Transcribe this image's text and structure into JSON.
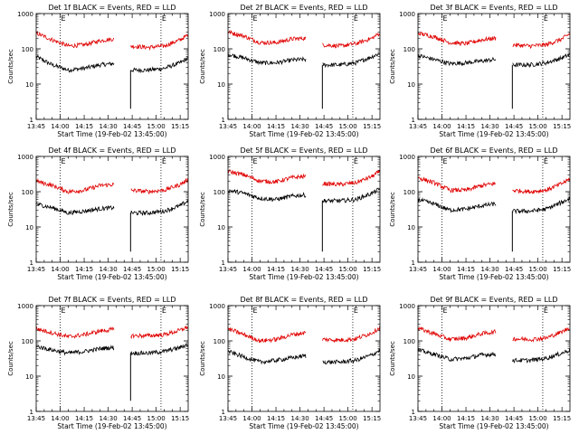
{
  "figure": {
    "colors": {
      "events": "#000000",
      "lld": "#e00000",
      "axes": "#000000"
    },
    "event_marker": "E",
    "xlabel": "Start Time (19-Feb-02 13:45:00)",
    "ylabel": "Counts/sec",
    "x_ticks": [
      "13:45",
      "14:00",
      "14:15",
      "14:30",
      "14:45",
      "15:00",
      "15:15"
    ],
    "y_ticks": [
      "1",
      "10",
      "100",
      "1000"
    ]
  },
  "chart_data": [
    {
      "type": "line",
      "title": "Det 1f BLACK = Events, RED = LLD",
      "xlabel": "Start Time (19-Feb-02 13:45:00)",
      "ylabel": "Counts/sec",
      "y_scale": "log",
      "ylim": [
        1,
        1000
      ],
      "xlim_minutes": [
        0,
        95
      ],
      "x_ticks": [
        "13:45",
        "14:00",
        "14:15",
        "14:30",
        "14:45",
        "15:00",
        "15:15"
      ],
      "event_markers_minutes": [
        15,
        78
      ],
      "data_gap_minutes": [
        49,
        59
      ],
      "dropout_minute": 59,
      "series": [
        {
          "name": "Events",
          "color": "#000000",
          "x_minutes": [
            0,
            10,
            20,
            30,
            40,
            48,
            59,
            70,
            80,
            90,
            95
          ],
          "y": [
            60,
            35,
            25,
            28,
            35,
            38,
            25,
            25,
            28,
            40,
            55
          ]
        },
        {
          "name": "LLD",
          "color": "#e00000",
          "x_minutes": [
            0,
            10,
            20,
            30,
            40,
            48,
            59,
            70,
            80,
            90,
            95
          ],
          "y": [
            280,
            180,
            120,
            130,
            170,
            190,
            120,
            110,
            120,
            180,
            250
          ]
        }
      ]
    },
    {
      "type": "line",
      "title": "Det 2f BLACK = Events, RED = LLD",
      "xlabel": "Start Time (19-Feb-02 13:45:00)",
      "ylabel": "Counts/sec",
      "y_scale": "log",
      "ylim": [
        1,
        1000
      ],
      "xlim_minutes": [
        0,
        95
      ],
      "x_ticks": [
        "13:45",
        "14:00",
        "14:15",
        "14:30",
        "14:45",
        "15:00",
        "15:15"
      ],
      "event_markers_minutes": [
        15,
        78
      ],
      "data_gap_minutes": [
        49,
        59
      ],
      "dropout_minute": 59,
      "series": [
        {
          "name": "Events",
          "color": "#000000",
          "x_minutes": [
            0,
            10,
            20,
            30,
            40,
            48,
            59,
            70,
            80,
            90,
            95
          ],
          "y": [
            70,
            55,
            40,
            40,
            48,
            50,
            35,
            35,
            40,
            60,
            75
          ]
        },
        {
          "name": "LLD",
          "color": "#e00000",
          "x_minutes": [
            0,
            10,
            20,
            30,
            40,
            48,
            59,
            70,
            80,
            90,
            95
          ],
          "y": [
            300,
            230,
            150,
            150,
            190,
            200,
            130,
            120,
            140,
            200,
            280
          ]
        }
      ]
    },
    {
      "type": "line",
      "title": "Det 3f BLACK = Events, RED = LLD",
      "xlabel": "Start Time (19-Feb-02 13:45:00)",
      "ylabel": "Counts/sec",
      "y_scale": "log",
      "ylim": [
        1,
        1000
      ],
      "xlim_minutes": [
        0,
        95
      ],
      "x_ticks": [
        "13:45",
        "14:00",
        "14:15",
        "14:30",
        "14:45",
        "15:00",
        "15:15"
      ],
      "event_markers_minutes": [
        15,
        78
      ],
      "data_gap_minutes": [
        49,
        59
      ],
      "dropout_minute": 59,
      "series": [
        {
          "name": "Events",
          "color": "#000000",
          "x_minutes": [
            0,
            10,
            20,
            30,
            40,
            48,
            59,
            70,
            80,
            90,
            95
          ],
          "y": [
            65,
            50,
            38,
            40,
            45,
            50,
            35,
            35,
            40,
            55,
            70
          ]
        },
        {
          "name": "LLD",
          "color": "#e00000",
          "x_minutes": [
            0,
            10,
            20,
            30,
            40,
            48,
            59,
            70,
            80,
            90,
            95
          ],
          "y": [
            280,
            220,
            150,
            140,
            180,
            200,
            130,
            120,
            130,
            190,
            270
          ]
        }
      ]
    },
    {
      "type": "line",
      "title": "Det 4f BLACK = Events, RED = LLD",
      "xlabel": "Start Time (19-Feb-02 13:45:00)",
      "ylabel": "Counts/sec",
      "y_scale": "log",
      "ylim": [
        1,
        1000
      ],
      "xlim_minutes": [
        0,
        95
      ],
      "x_ticks": [
        "13:45",
        "14:00",
        "14:15",
        "14:30",
        "14:45",
        "15:00",
        "15:15"
      ],
      "event_markers_minutes": [
        15,
        78
      ],
      "data_gap_minutes": [
        49,
        59
      ],
      "dropout_minute": 59,
      "series": [
        {
          "name": "Events",
          "color": "#000000",
          "x_minutes": [
            0,
            10,
            20,
            30,
            40,
            48,
            59,
            70,
            80,
            90,
            95
          ],
          "y": [
            45,
            35,
            25,
            28,
            33,
            35,
            25,
            25,
            28,
            40,
            55
          ]
        },
        {
          "name": "LLD",
          "color": "#e00000",
          "x_minutes": [
            0,
            10,
            20,
            30,
            40,
            48,
            59,
            70,
            80,
            90,
            95
          ],
          "y": [
            200,
            150,
            100,
            110,
            150,
            160,
            110,
            100,
            110,
            160,
            220
          ]
        }
      ]
    },
    {
      "type": "line",
      "title": "Det 5f BLACK = Events, RED = LLD",
      "xlabel": "Start Time (19-Feb-02 13:45:00)",
      "ylabel": "Counts/sec",
      "y_scale": "log",
      "ylim": [
        1,
        1000
      ],
      "xlim_minutes": [
        0,
        95
      ],
      "x_ticks": [
        "13:45",
        "14:00",
        "14:15",
        "14:30",
        "14:45",
        "15:00",
        "15:15"
      ],
      "event_markers_minutes": [
        15,
        78
      ],
      "data_gap_minutes": [
        49,
        59
      ],
      "dropout_minute": 59,
      "series": [
        {
          "name": "Events",
          "color": "#000000",
          "x_minutes": [
            0,
            10,
            20,
            30,
            40,
            48,
            59,
            70,
            80,
            90,
            95
          ],
          "y": [
            110,
            90,
            65,
            60,
            75,
            80,
            55,
            55,
            60,
            90,
            120
          ]
        },
        {
          "name": "LLD",
          "color": "#e00000",
          "x_minutes": [
            0,
            10,
            20,
            30,
            40,
            48,
            59,
            70,
            80,
            90,
            95
          ],
          "y": [
            380,
            300,
            200,
            190,
            250,
            270,
            170,
            160,
            180,
            270,
            380
          ]
        }
      ]
    },
    {
      "type": "line",
      "title": "Det 6f BLACK = Events, RED = LLD",
      "xlabel": "Start Time (19-Feb-02 13:45:00)",
      "ylabel": "Counts/sec",
      "y_scale": "log",
      "ylim": [
        1,
        1000
      ],
      "xlim_minutes": [
        0,
        95
      ],
      "x_ticks": [
        "13:45",
        "14:00",
        "14:15",
        "14:30",
        "14:45",
        "15:00",
        "15:15"
      ],
      "event_markers_minutes": [
        15,
        78
      ],
      "data_gap_minutes": [
        49,
        59
      ],
      "dropout_minute": 59,
      "series": [
        {
          "name": "Events",
          "color": "#000000",
          "x_minutes": [
            0,
            10,
            20,
            30,
            40,
            48,
            59,
            70,
            80,
            90,
            95
          ],
          "y": [
            60,
            45,
            30,
            32,
            40,
            45,
            28,
            28,
            32,
            50,
            65
          ]
        },
        {
          "name": "LLD",
          "color": "#e00000",
          "x_minutes": [
            0,
            10,
            20,
            30,
            40,
            48,
            59,
            70,
            80,
            90,
            95
          ],
          "y": [
            250,
            180,
            110,
            110,
            150,
            170,
            110,
            100,
            110,
            170,
            230
          ]
        }
      ]
    },
    {
      "type": "line",
      "title": "Det 7f BLACK = Events, RED = LLD",
      "xlabel": "Start Time (19-Feb-02 13:45:00)",
      "ylabel": "Counts/sec",
      "y_scale": "log",
      "ylim": [
        1,
        1000
      ],
      "xlim_minutes": [
        0,
        95
      ],
      "x_ticks": [
        "13:45",
        "14:00",
        "14:15",
        "14:30",
        "14:45",
        "15:00",
        "15:15"
      ],
      "event_markers_minutes": [
        15,
        78
      ],
      "data_gap_minutes": [
        49,
        59
      ],
      "dropout_minute": 59,
      "series": [
        {
          "name": "Events",
          "color": "#000000",
          "x_minutes": [
            0,
            10,
            20,
            30,
            40,
            48,
            59,
            70,
            80,
            90,
            95
          ],
          "y": [
            70,
            55,
            45,
            50,
            60,
            65,
            45,
            45,
            50,
            65,
            80
          ]
        },
        {
          "name": "LLD",
          "color": "#e00000",
          "x_minutes": [
            0,
            10,
            20,
            30,
            40,
            48,
            59,
            70,
            80,
            90,
            95
          ],
          "y": [
            220,
            170,
            130,
            150,
            190,
            210,
            140,
            140,
            150,
            200,
            250
          ]
        }
      ]
    },
    {
      "type": "line",
      "title": "Det 8f BLACK = Events, RED = LLD",
      "xlabel": "Start Time (19-Feb-02 13:45:00)",
      "ylabel": "Counts/sec",
      "y_scale": "log",
      "ylim": [
        1,
        1000
      ],
      "xlim_minutes": [
        0,
        95
      ],
      "x_ticks": [
        "13:45",
        "14:00",
        "14:15",
        "14:30",
        "14:45",
        "15:00",
        "15:15"
      ],
      "event_markers_minutes": [
        15,
        78
      ],
      "data_gap_minutes": [
        49,
        59
      ],
      "dropout_minute": null,
      "series": [
        {
          "name": "Events",
          "color": "#000000",
          "x_minutes": [
            0,
            10,
            20,
            30,
            40,
            48,
            59,
            70,
            80,
            90,
            95
          ],
          "y": [
            50,
            35,
            25,
            28,
            33,
            38,
            25,
            25,
            28,
            40,
            55
          ]
        },
        {
          "name": "LLD",
          "color": "#e00000",
          "x_minutes": [
            0,
            10,
            20,
            30,
            40,
            48,
            59,
            70,
            80,
            90,
            95
          ],
          "y": [
            220,
            150,
            100,
            110,
            150,
            170,
            110,
            105,
            115,
            170,
            240
          ]
        }
      ]
    },
    {
      "type": "line",
      "title": "Det 9f BLACK = Events, RED = LLD",
      "xlabel": "Start Time (19-Feb-02 13:45:00)",
      "ylabel": "Counts/sec",
      "y_scale": "log",
      "ylim": [
        1,
        1000
      ],
      "xlim_minutes": [
        0,
        95
      ],
      "x_ticks": [
        "13:45",
        "14:00",
        "14:15",
        "14:30",
        "14:45",
        "15:00",
        "15:15"
      ],
      "event_markers_minutes": [
        15,
        78
      ],
      "data_gap_minutes": [
        49,
        59
      ],
      "dropout_minute": null,
      "series": [
        {
          "name": "Events",
          "color": "#000000",
          "x_minutes": [
            0,
            10,
            20,
            30,
            40,
            48,
            59,
            70,
            80,
            90,
            95
          ],
          "y": [
            55,
            42,
            30,
            32,
            40,
            42,
            28,
            28,
            32,
            45,
            55
          ]
        },
        {
          "name": "LLD",
          "color": "#e00000",
          "x_minutes": [
            0,
            10,
            20,
            30,
            40,
            48,
            59,
            70,
            80,
            90,
            95
          ],
          "y": [
            230,
            160,
            110,
            120,
            160,
            180,
            115,
            110,
            120,
            180,
            240
          ]
        }
      ]
    }
  ]
}
